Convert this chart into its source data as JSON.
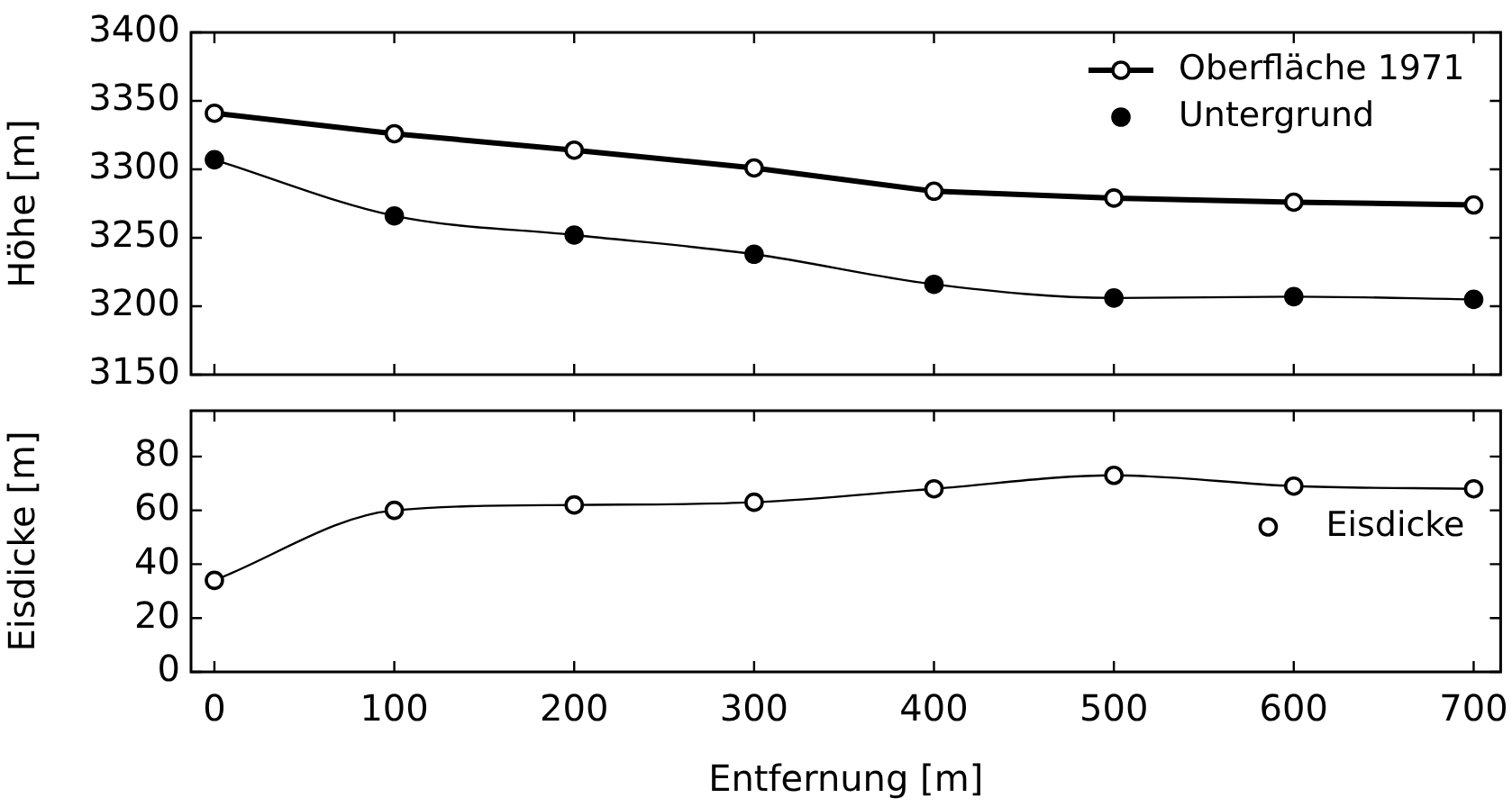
{
  "chart_data": [
    {
      "type": "line",
      "ylabel": "Höhe [m]",
      "x": [
        0,
        100,
        200,
        300,
        400,
        500,
        600,
        700
      ],
      "xlim": [
        -13,
        715
      ],
      "xticks": [
        0,
        100,
        200,
        300,
        400,
        500,
        600,
        700
      ],
      "ylim": [
        3150,
        3400
      ],
      "yticks": [
        3150,
        3200,
        3250,
        3300,
        3350,
        3400
      ],
      "tick_labels": "y",
      "grid": false,
      "legend": "top right",
      "marker": "circle",
      "line_style": "solid",
      "series": [
        {
          "name": "Oberfläche 1971",
          "color": "#000000",
          "values": [
            3341,
            3326,
            3314,
            3301,
            3284,
            3279,
            3276,
            3274
          ]
        },
        {
          "name": "Untergrund",
          "color": "#000000",
          "values": [
            3307,
            3266,
            3252,
            3238,
            3216,
            3206,
            3207,
            3205
          ]
        }
      ]
    },
    {
      "type": "line",
      "xlabel": "Entfernung [m]",
      "ylabel": "Eisdicke [m]",
      "x": [
        0,
        100,
        200,
        300,
        400,
        500,
        600,
        700
      ],
      "xlim": [
        -13,
        715
      ],
      "xticks": [
        0,
        100,
        200,
        300,
        400,
        500,
        600,
        700
      ],
      "ylim": [
        0,
        97
      ],
      "yticks": [
        0,
        20,
        40,
        60,
        80
      ],
      "grid": false,
      "legend": "right",
      "marker": "circle",
      "line_style": "solid",
      "series": [
        {
          "name": "Eisdicke",
          "color": "#000000",
          "values": [
            34,
            60,
            62,
            63,
            68,
            73,
            69,
            68
          ]
        }
      ]
    }
  ]
}
